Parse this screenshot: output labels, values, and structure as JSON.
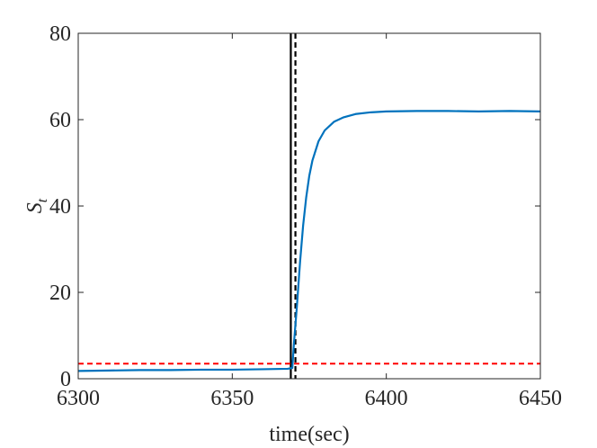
{
  "chart_data": {
    "type": "line",
    "title": "",
    "xlabel": "time(sec)",
    "ylabel_main": "S",
    "ylabel_sub": "t",
    "xlim": [
      6300,
      6450
    ],
    "ylim": [
      0,
      80
    ],
    "xticks": [
      6300,
      6350,
      6400,
      6450
    ],
    "yticks": [
      0,
      20,
      40,
      60,
      80
    ],
    "grid": false,
    "legend": "none",
    "series": [
      {
        "color": "#0072BD",
        "style": "solid",
        "x": [
          6300,
          6310,
          6320,
          6330,
          6340,
          6350,
          6360,
          6368,
          6369.5,
          6370,
          6371,
          6372,
          6373,
          6374,
          6375,
          6376,
          6378,
          6380,
          6383,
          6386,
          6390,
          6395,
          6400,
          6410,
          6420,
          6430,
          6440,
          6450
        ],
        "y": [
          1.8,
          1.9,
          2.0,
          2.0,
          2.1,
          2.1,
          2.2,
          2.3,
          2.5,
          8.0,
          17.0,
          27.0,
          35.5,
          42.0,
          47.0,
          50.5,
          55.0,
          57.5,
          59.5,
          60.5,
          61.3,
          61.7,
          61.9,
          62.0,
          62.0,
          61.9,
          62.0,
          61.9
        ]
      }
    ],
    "reference_lines": [
      {
        "orientation": "vertical",
        "value": 6369,
        "color": "#000000",
        "style": "solid"
      },
      {
        "orientation": "vertical",
        "value": 6370.5,
        "color": "#000000",
        "style": "dashed"
      },
      {
        "orientation": "horizontal",
        "value": 3.5,
        "color": "#FF0000",
        "style": "dashed"
      }
    ]
  }
}
